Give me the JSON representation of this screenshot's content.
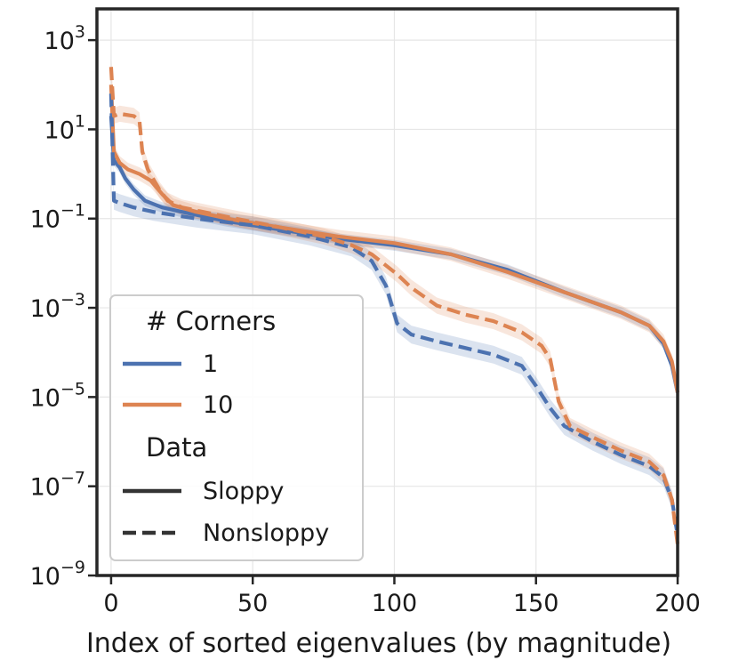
{
  "chart_data": {
    "type": "line",
    "title": "",
    "xlabel": "Index of sorted eigenvalues (by magnitude)",
    "ylabel": "",
    "xlim": [
      -5,
      200
    ],
    "ylim_log10": [
      -9,
      3.7
    ],
    "yscale": "log",
    "grid": true,
    "x_ticks": [
      0,
      50,
      100,
      150,
      200
    ],
    "y_ticks": [
      {
        "base": "10",
        "exp": "3",
        "value_log10": 3
      },
      {
        "base": "10",
        "exp": "1",
        "value_log10": 1
      },
      {
        "base": "10",
        "exp": "−1",
        "value_log10": -1
      },
      {
        "base": "10",
        "exp": "−3",
        "value_log10": -3
      },
      {
        "base": "10",
        "exp": "−5",
        "value_log10": -5
      },
      {
        "base": "10",
        "exp": "−7",
        "value_log10": -7
      },
      {
        "base": "10",
        "exp": "−9",
        "value_log10": -9
      }
    ],
    "legend": {
      "placement": "lower-left",
      "hue_title": "# Corners",
      "hue_entries": [
        {
          "label": "1",
          "color": "#4c72b0"
        },
        {
          "label": "10",
          "color": "#dd8452"
        }
      ],
      "style_title": "Data",
      "style_entries": [
        {
          "label": "Sloppy",
          "dash": "solid"
        },
        {
          "label": "Nonsloppy",
          "dash": "dashed"
        }
      ]
    },
    "series": [
      {
        "name": "1 / Sloppy",
        "corners": "1",
        "data": "Sloppy",
        "color": "#4c72b0",
        "dash": "solid",
        "band_log10": 0.12,
        "points": [
          [
            0,
            1.3
          ],
          [
            1,
            0.3
          ],
          [
            3,
            0.15
          ],
          [
            5,
            -0.1
          ],
          [
            8,
            -0.35
          ],
          [
            12,
            -0.6
          ],
          [
            18,
            -0.75
          ],
          [
            25,
            -0.85
          ],
          [
            40,
            -1.05
          ],
          [
            60,
            -1.25
          ],
          [
            80,
            -1.45
          ],
          [
            100,
            -1.6
          ],
          [
            120,
            -1.8
          ],
          [
            140,
            -2.15
          ],
          [
            160,
            -2.65
          ],
          [
            180,
            -3.1
          ],
          [
            190,
            -3.4
          ],
          [
            195,
            -3.8
          ],
          [
            198,
            -4.3
          ],
          [
            200,
            -4.9
          ]
        ]
      },
      {
        "name": "10 / Sloppy",
        "corners": "10",
        "data": "Sloppy",
        "color": "#dd8452",
        "dash": "solid",
        "band_log10": 0.15,
        "points": [
          [
            0,
            2.0
          ],
          [
            1,
            0.5
          ],
          [
            3,
            0.25
          ],
          [
            6,
            0.1
          ],
          [
            10,
            0.0
          ],
          [
            14,
            -0.15
          ],
          [
            18,
            -0.45
          ],
          [
            22,
            -0.7
          ],
          [
            30,
            -0.85
          ],
          [
            45,
            -1.05
          ],
          [
            60,
            -1.2
          ],
          [
            80,
            -1.4
          ],
          [
            100,
            -1.55
          ],
          [
            120,
            -1.8
          ],
          [
            140,
            -2.2
          ],
          [
            160,
            -2.65
          ],
          [
            180,
            -3.1
          ],
          [
            190,
            -3.4
          ],
          [
            195,
            -3.75
          ],
          [
            198,
            -4.2
          ],
          [
            200,
            -4.9
          ]
        ]
      },
      {
        "name": "1 / Nonsloppy",
        "corners": "1",
        "data": "Nonsloppy",
        "color": "#4c72b0",
        "dash": "dashed",
        "band_log10": 0.2,
        "points": [
          [
            0,
            1.8
          ],
          [
            1,
            -0.6
          ],
          [
            3,
            -0.65
          ],
          [
            8,
            -0.75
          ],
          [
            15,
            -0.85
          ],
          [
            30,
            -1.0
          ],
          [
            50,
            -1.15
          ],
          [
            70,
            -1.4
          ],
          [
            85,
            -1.65
          ],
          [
            92,
            -1.95
          ],
          [
            97,
            -2.5
          ],
          [
            101,
            -3.35
          ],
          [
            106,
            -3.6
          ],
          [
            115,
            -3.75
          ],
          [
            125,
            -3.9
          ],
          [
            135,
            -4.05
          ],
          [
            145,
            -4.3
          ],
          [
            150,
            -4.75
          ],
          [
            155,
            -5.25
          ],
          [
            160,
            -5.65
          ],
          [
            170,
            -6.0
          ],
          [
            180,
            -6.3
          ],
          [
            190,
            -6.55
          ],
          [
            195,
            -6.8
          ],
          [
            198,
            -7.3
          ],
          [
            200,
            -8.1
          ]
        ]
      },
      {
        "name": "10 / Nonsloppy",
        "corners": "10",
        "data": "Nonsloppy",
        "color": "#dd8452",
        "dash": "dashed",
        "band_log10": 0.18,
        "points": [
          [
            0,
            2.4
          ],
          [
            1,
            1.3
          ],
          [
            3,
            1.35
          ],
          [
            8,
            1.3
          ],
          [
            10,
            1.2
          ],
          [
            11,
            0.5
          ],
          [
            13,
            0.1
          ],
          [
            17,
            -0.35
          ],
          [
            20,
            -0.6
          ],
          [
            25,
            -0.75
          ],
          [
            40,
            -0.95
          ],
          [
            60,
            -1.2
          ],
          [
            75,
            -1.4
          ],
          [
            85,
            -1.6
          ],
          [
            92,
            -1.8
          ],
          [
            97,
            -2.05
          ],
          [
            101,
            -2.25
          ],
          [
            106,
            -2.55
          ],
          [
            115,
            -2.95
          ],
          [
            125,
            -3.15
          ],
          [
            135,
            -3.3
          ],
          [
            145,
            -3.55
          ],
          [
            152,
            -3.85
          ],
          [
            155,
            -4.15
          ],
          [
            158,
            -5.1
          ],
          [
            162,
            -5.65
          ],
          [
            170,
            -5.9
          ],
          [
            180,
            -6.2
          ],
          [
            190,
            -6.45
          ],
          [
            195,
            -6.75
          ],
          [
            198,
            -7.3
          ],
          [
            200,
            -8.3
          ]
        ]
      }
    ]
  }
}
